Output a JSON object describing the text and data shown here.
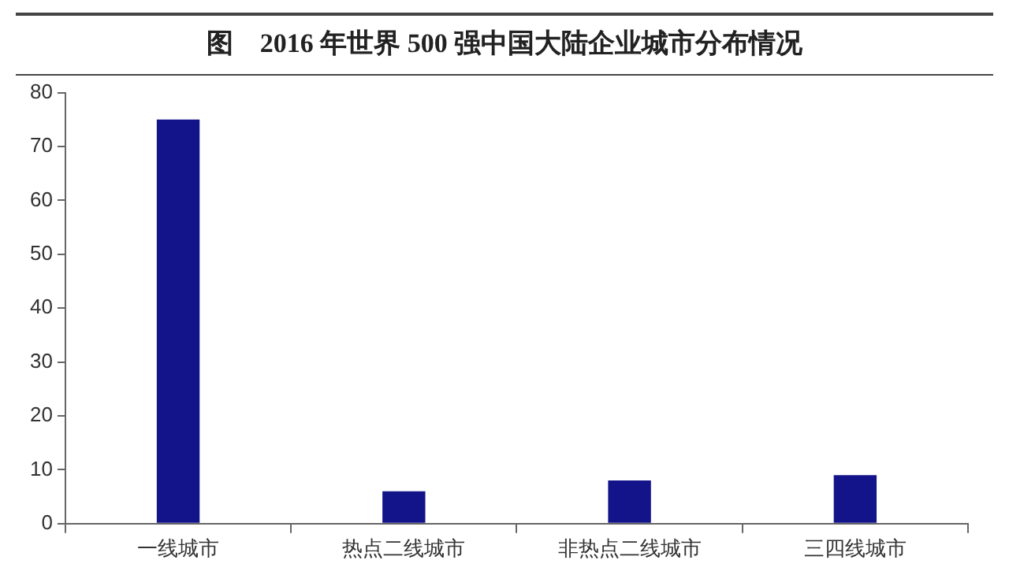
{
  "chart_data": {
    "type": "bar",
    "title": "图　2016 年世界 500 强中国大陆企业城市分布情况",
    "categories": [
      "一线城市",
      "热点二线城市",
      "非热点二线城市",
      "三四线城市"
    ],
    "values": [
      75,
      6,
      8,
      9
    ],
    "color": "#14148a",
    "ylim": [
      0,
      80
    ],
    "yticks": [
      0,
      10,
      20,
      30,
      40,
      50,
      60,
      70,
      80
    ],
    "grid": false
  }
}
